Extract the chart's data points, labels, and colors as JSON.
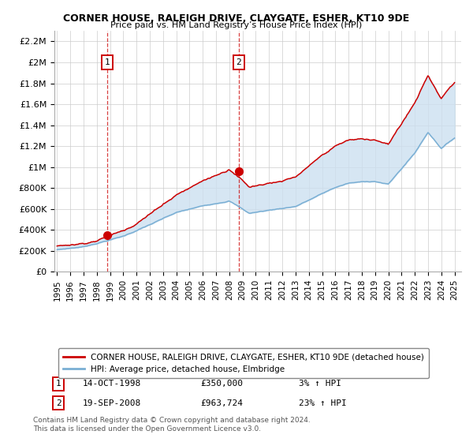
{
  "title": "CORNER HOUSE, RALEIGH DRIVE, CLAYGATE, ESHER, KT10 9DE",
  "subtitle": "Price paid vs. HM Land Registry’s House Price Index (HPI)",
  "legend_line1": "CORNER HOUSE, RALEIGH DRIVE, CLAYGATE, ESHER, KT10 9DE (detached house)",
  "legend_line2": "HPI: Average price, detached house, Elmbridge",
  "sale1_date": "14-OCT-1998",
  "sale1_price": "£350,000",
  "sale1_hpi": "3% ↑ HPI",
  "sale1_year": 1998.79,
  "sale1_value": 350000,
  "sale2_date": "19-SEP-2008",
  "sale2_price": "£963,724",
  "sale2_hpi": "23% ↑ HPI",
  "sale2_year": 2008.72,
  "sale2_value": 963724,
  "red_color": "#cc0000",
  "blue_color": "#7aafd4",
  "fill_color": "#cce0f0",
  "background_color": "#ffffff",
  "grid_color": "#cccccc",
  "footer_text": "Contains HM Land Registry data © Crown copyright and database right 2024.\nThis data is licensed under the Open Government Licence v3.0.",
  "ylim": [
    0,
    2300000
  ],
  "xlim": [
    1994.8,
    2025.5
  ],
  "yticks": [
    0,
    200000,
    400000,
    600000,
    800000,
    1000000,
    1200000,
    1400000,
    1600000,
    1800000,
    2000000,
    2200000
  ],
  "ytick_labels": [
    "£0",
    "£200K",
    "£400K",
    "£600K",
    "£800K",
    "£1M",
    "£1.2M",
    "£1.4M",
    "£1.6M",
    "£1.8M",
    "£2M",
    "£2.2M"
  ],
  "xticks": [
    1995,
    1996,
    1997,
    1998,
    1999,
    2000,
    2001,
    2002,
    2003,
    2004,
    2005,
    2006,
    2007,
    2008,
    2009,
    2010,
    2011,
    2012,
    2013,
    2014,
    2015,
    2016,
    2017,
    2018,
    2019,
    2020,
    2021,
    2022,
    2023,
    2024,
    2025
  ]
}
